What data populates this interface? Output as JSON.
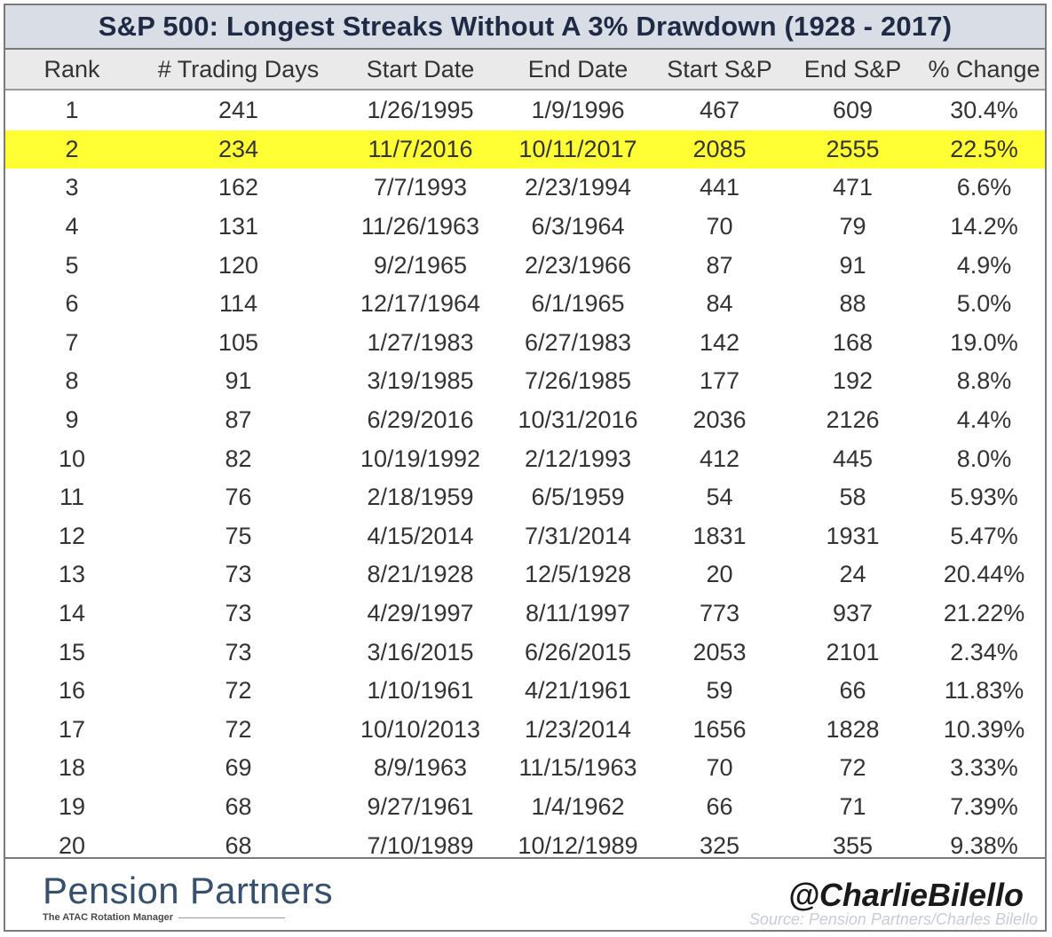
{
  "chart_data": {
    "type": "table",
    "title": "S&P 500: Longest Streaks Without A 3% Drawdown (1928 - 2017)",
    "columns": [
      "Rank",
      "# Trading Days",
      "Start Date",
      "End Date",
      "Start S&P",
      "End S&P",
      "% Change"
    ],
    "highlight_color": "#ffff33",
    "highlighted_row_rank": "2",
    "rows": [
      [
        "1",
        "241",
        "1/26/1995",
        "1/9/1996",
        "467",
        "609",
        "30.4%"
      ],
      [
        "2",
        "234",
        "11/7/2016",
        "10/11/2017",
        "2085",
        "2555",
        "22.5%"
      ],
      [
        "3",
        "162",
        "7/7/1993",
        "2/23/1994",
        "441",
        "471",
        "6.6%"
      ],
      [
        "4",
        "131",
        "11/26/1963",
        "6/3/1964",
        "70",
        "79",
        "14.2%"
      ],
      [
        "5",
        "120",
        "9/2/1965",
        "2/23/1966",
        "87",
        "91",
        "4.9%"
      ],
      [
        "6",
        "114",
        "12/17/1964",
        "6/1/1965",
        "84",
        "88",
        "5.0%"
      ],
      [
        "7",
        "105",
        "1/27/1983",
        "6/27/1983",
        "142",
        "168",
        "19.0%"
      ],
      [
        "8",
        "91",
        "3/19/1985",
        "7/26/1985",
        "177",
        "192",
        "8.8%"
      ],
      [
        "9",
        "87",
        "6/29/2016",
        "10/31/2016",
        "2036",
        "2126",
        "4.4%"
      ],
      [
        "10",
        "82",
        "10/19/1992",
        "2/12/1993",
        "412",
        "445",
        "8.0%"
      ],
      [
        "11",
        "76",
        "2/18/1959",
        "6/5/1959",
        "54",
        "58",
        "5.93%"
      ],
      [
        "12",
        "75",
        "4/15/2014",
        "7/31/2014",
        "1831",
        "1931",
        "5.47%"
      ],
      [
        "13",
        "73",
        "8/21/1928",
        "12/5/1928",
        "20",
        "24",
        "20.44%"
      ],
      [
        "14",
        "73",
        "4/29/1997",
        "8/11/1997",
        "773",
        "937",
        "21.22%"
      ],
      [
        "15",
        "73",
        "3/16/2015",
        "6/26/2015",
        "2053",
        "2101",
        "2.34%"
      ],
      [
        "16",
        "72",
        "1/10/1961",
        "4/21/1961",
        "59",
        "66",
        "11.83%"
      ],
      [
        "17",
        "72",
        "10/10/2013",
        "1/23/2014",
        "1656",
        "1828",
        "10.39%"
      ],
      [
        "18",
        "69",
        "8/9/1963",
        "11/15/1963",
        "70",
        "72",
        "3.33%"
      ],
      [
        "19",
        "68",
        "9/27/1961",
        "1/4/1962",
        "66",
        "71",
        "7.39%"
      ],
      [
        "20",
        "68",
        "7/10/1989",
        "10/12/1989",
        "325",
        "355",
        "9.38%"
      ]
    ]
  },
  "footer": {
    "logo_text": "Pension Partners",
    "logo_tagline": "The ATAC Rotation Manager",
    "handle": "@CharlieBilello",
    "source": "Source: Pension Partners/Charles Bilello"
  }
}
